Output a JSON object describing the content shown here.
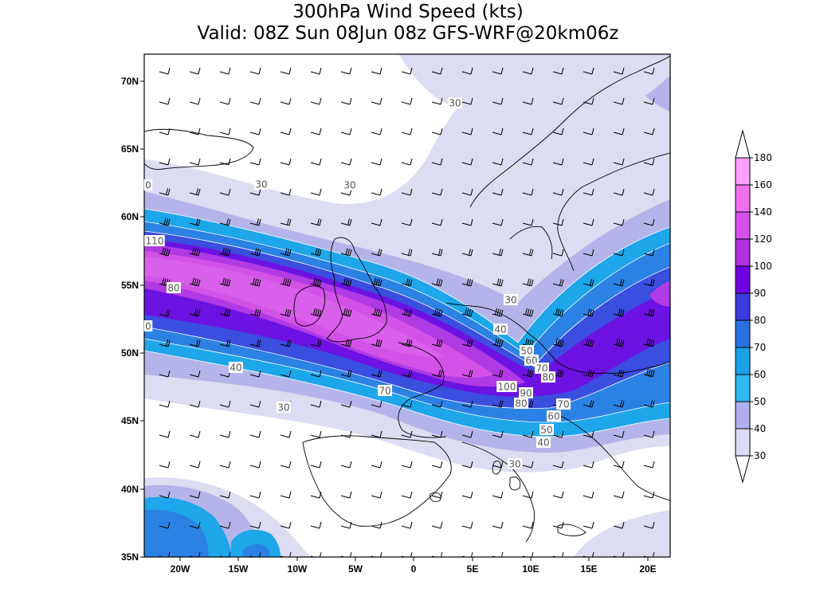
{
  "header": {
    "title_line1": "300hPa Wind Speed (kts)",
    "title_line2": "Valid: 08Z Sun 08Jun 08z GFS-WRF@20km06z"
  },
  "map": {
    "lat_ticks": [
      "70N",
      "65N",
      "60N",
      "55N",
      "50N",
      "45N",
      "40N",
      "35N"
    ],
    "lon_ticks": [
      "20W",
      "15W",
      "10W",
      "5W",
      "0",
      "5E",
      "10E",
      "15E",
      "20E"
    ],
    "contour_labels": [
      "30",
      "0",
      "30",
      "30",
      "110",
      "80",
      "0",
      "30",
      "40",
      "50",
      "60",
      "70",
      "80",
      "100",
      "90",
      "80",
      "70",
      "60",
      "50",
      "40",
      "30",
      "40",
      "70",
      "30"
    ]
  },
  "colorbar": {
    "levels": [
      "180",
      "160",
      "140",
      "120",
      "100",
      "90",
      "80",
      "70",
      "60",
      "50",
      "40",
      "30"
    ],
    "colors": [
      "#ffddff",
      "#ffa0ff",
      "#f070f0",
      "#d450e8",
      "#b030e0",
      "#7000e0",
      "#3a3add",
      "#2a70e0",
      "#1ca0e8",
      "#30b8f0",
      "#b0b0ee",
      "#dcdcf4"
    ]
  },
  "palette": {
    "c30": "#dcdcf2",
    "c40": "#b4b4ea",
    "c50": "#1ea6ea",
    "c60": "#2c82e4",
    "c70": "#3a4ee0",
    "c80": "#6c12e2",
    "c90": "#b03ae4",
    "c100": "#d252e8"
  }
}
